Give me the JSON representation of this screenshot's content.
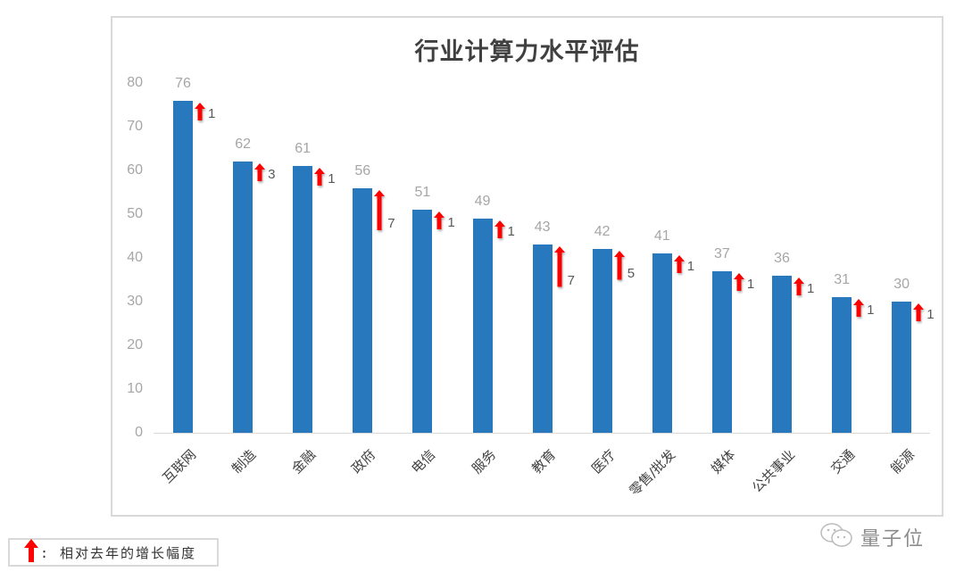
{
  "chart_data": {
    "type": "bar",
    "title": "行业计算力水平评估",
    "xlabel": "",
    "ylabel": "",
    "ylim": [
      0,
      80
    ],
    "yticks": [
      0,
      10,
      20,
      30,
      40,
      50,
      60,
      70,
      80
    ],
    "grid": false,
    "categories": [
      "互联网",
      "制造",
      "金融",
      "政府",
      "电信",
      "服务",
      "教育",
      "医疗",
      "零售/批发",
      "媒体",
      "公共事业",
      "交通",
      "能源"
    ],
    "values": [
      76,
      62,
      61,
      56,
      51,
      49,
      43,
      42,
      41,
      37,
      36,
      31,
      30
    ],
    "annotations": {
      "type": "increase_vs_last_year",
      "values": [
        1,
        3,
        1,
        7,
        1,
        1,
        7,
        5,
        1,
        1,
        1,
        1,
        1
      ]
    },
    "bar_color": "#2878bd",
    "arrow_color": "#ff0000",
    "legend": "相对去年的增长幅度"
  },
  "legend": {
    "icon": "red-up-arrow-icon",
    "text": ": 相对去年的增长幅度"
  },
  "watermark": {
    "icon": "wechat-icon",
    "text": "量子位"
  }
}
